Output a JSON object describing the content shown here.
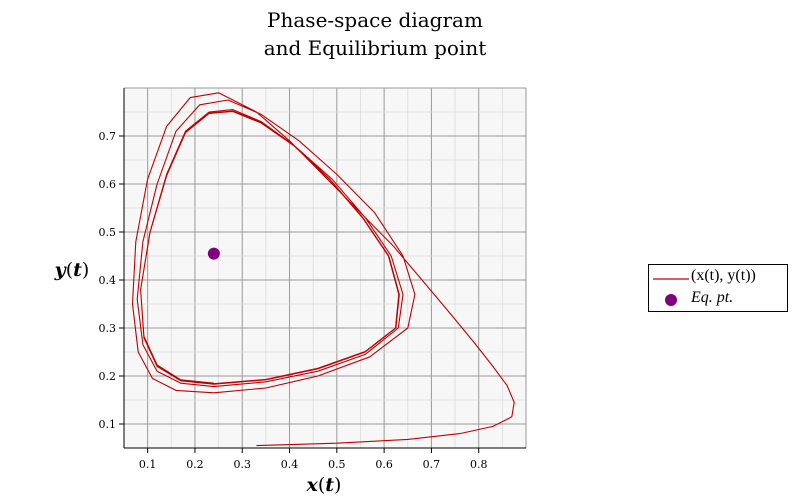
{
  "chart": {
    "title_line1": "Phase-space diagram",
    "title_line2": "and Equilibrium point"
  },
  "chart_data": {
    "type": "line",
    "title": "Phase-space diagram and Equilibrium point",
    "xlabel": "x(t)",
    "ylabel": "y(t)",
    "xlim": [
      0.05,
      0.9
    ],
    "ylim": [
      0.05,
      0.8
    ],
    "x_ticks": [
      "0.1",
      "0.2",
      "0.3",
      "0.4",
      "0.5",
      "0.6",
      "0.7",
      "0.8"
    ],
    "y_ticks": [
      "0.1",
      "0.2",
      "0.3",
      "0.4",
      "0.5",
      "0.6",
      "0.7"
    ],
    "grid": true,
    "legend_position": "right",
    "series": [
      {
        "name": "(x(t), y(t))",
        "type": "line",
        "color": "#c00000",
        "points": [
          [
            0.33,
            0.055
          ],
          [
            0.5,
            0.06
          ],
          [
            0.65,
            0.068
          ],
          [
            0.76,
            0.08
          ],
          [
            0.83,
            0.095
          ],
          [
            0.87,
            0.115
          ],
          [
            0.875,
            0.145
          ],
          [
            0.86,
            0.18
          ],
          [
            0.83,
            0.22
          ],
          [
            0.79,
            0.27
          ],
          [
            0.74,
            0.33
          ],
          [
            0.68,
            0.4
          ],
          [
            0.62,
            0.47
          ],
          [
            0.55,
            0.54
          ],
          [
            0.47,
            0.62
          ],
          [
            0.4,
            0.69
          ],
          [
            0.33,
            0.75
          ],
          [
            0.25,
            0.79
          ],
          [
            0.19,
            0.78
          ],
          [
            0.14,
            0.72
          ],
          [
            0.1,
            0.61
          ],
          [
            0.075,
            0.48
          ],
          [
            0.068,
            0.35
          ],
          [
            0.08,
            0.25
          ],
          [
            0.11,
            0.195
          ],
          [
            0.16,
            0.17
          ],
          [
            0.24,
            0.165
          ],
          [
            0.35,
            0.175
          ],
          [
            0.46,
            0.2
          ],
          [
            0.57,
            0.24
          ],
          [
            0.65,
            0.3
          ],
          [
            0.665,
            0.37
          ],
          [
            0.64,
            0.45
          ],
          [
            0.58,
            0.54
          ],
          [
            0.5,
            0.62
          ],
          [
            0.42,
            0.69
          ],
          [
            0.34,
            0.745
          ],
          [
            0.27,
            0.775
          ],
          [
            0.21,
            0.765
          ],
          [
            0.16,
            0.71
          ],
          [
            0.12,
            0.6
          ],
          [
            0.09,
            0.48
          ],
          [
            0.078,
            0.36
          ],
          [
            0.09,
            0.265
          ],
          [
            0.12,
            0.21
          ],
          [
            0.17,
            0.185
          ],
          [
            0.24,
            0.178
          ],
          [
            0.35,
            0.188
          ],
          [
            0.46,
            0.21
          ],
          [
            0.56,
            0.245
          ],
          [
            0.63,
            0.3
          ],
          [
            0.64,
            0.37
          ],
          [
            0.615,
            0.45
          ],
          [
            0.56,
            0.53
          ],
          [
            0.49,
            0.61
          ],
          [
            0.41,
            0.68
          ],
          [
            0.34,
            0.73
          ],
          [
            0.28,
            0.755
          ],
          [
            0.23,
            0.75
          ],
          [
            0.18,
            0.71
          ],
          [
            0.14,
            0.62
          ],
          [
            0.105,
            0.5
          ],
          [
            0.085,
            0.38
          ],
          [
            0.092,
            0.28
          ],
          [
            0.12,
            0.22
          ],
          [
            0.17,
            0.19
          ],
          [
            0.24,
            0.183
          ],
          [
            0.35,
            0.192
          ],
          [
            0.46,
            0.215
          ],
          [
            0.56,
            0.25
          ],
          [
            0.625,
            0.3
          ],
          [
            0.632,
            0.37
          ],
          [
            0.61,
            0.45
          ],
          [
            0.555,
            0.53
          ],
          [
            0.485,
            0.61
          ],
          [
            0.41,
            0.68
          ],
          [
            0.34,
            0.728
          ],
          [
            0.28,
            0.752
          ],
          [
            0.23,
            0.748
          ],
          [
            0.18,
            0.708
          ],
          [
            0.14,
            0.618
          ],
          [
            0.105,
            0.5
          ],
          [
            0.085,
            0.38
          ],
          [
            0.092,
            0.282
          ],
          [
            0.12,
            0.222
          ],
          [
            0.17,
            0.191
          ],
          [
            0.24,
            0.184
          ],
          [
            0.35,
            0.193
          ],
          [
            0.46,
            0.216
          ],
          [
            0.56,
            0.251
          ],
          [
            0.624,
            0.3
          ],
          [
            0.631,
            0.37
          ],
          [
            0.609,
            0.45
          ],
          [
            0.554,
            0.53
          ],
          [
            0.484,
            0.61
          ],
          [
            0.41,
            0.679
          ],
          [
            0.34,
            0.727
          ],
          [
            0.28,
            0.751
          ],
          [
            0.23,
            0.747
          ],
          [
            0.18,
            0.707
          ],
          [
            0.14,
            0.617
          ],
          [
            0.105,
            0.499
          ],
          [
            0.085,
            0.38
          ],
          [
            0.092,
            0.283
          ],
          [
            0.12,
            0.223
          ],
          [
            0.17,
            0.192
          ],
          [
            0.24,
            0.185
          ]
        ]
      },
      {
        "name": "Eq. pt.",
        "type": "scatter",
        "color": "#800080",
        "points": [
          [
            0.24,
            0.455
          ]
        ]
      }
    ]
  }
}
